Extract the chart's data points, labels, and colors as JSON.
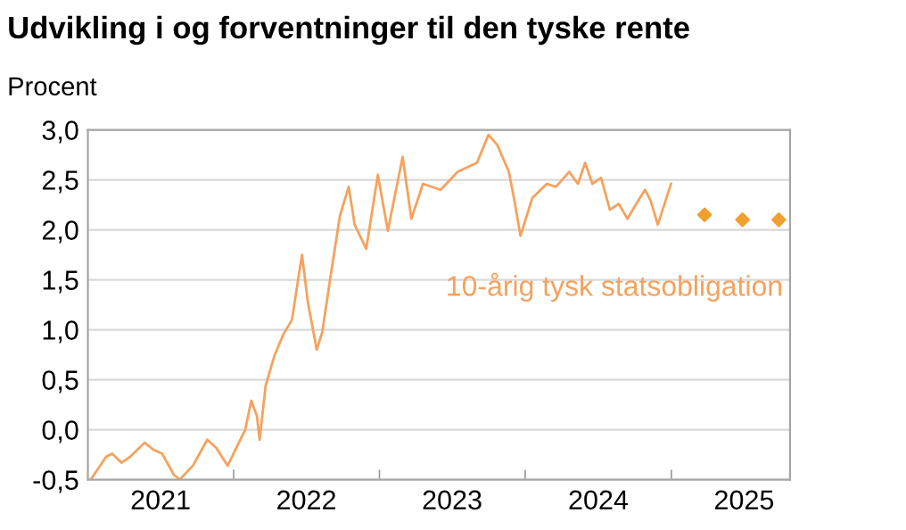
{
  "chart_data": {
    "type": "line",
    "title": "Udvikling i og forventninger til den tyske rente",
    "ylabel": "Procent",
    "xlim": [
      "2021-01-01",
      "2025-10-25"
    ],
    "xticks": [
      {
        "value": "2022-01-01",
        "label": null
      },
      {
        "value": "2023-01-01",
        "label": null
      },
      {
        "value": "2024-01-01",
        "label": null
      },
      {
        "value": "2025-01-01",
        "label": null
      },
      {
        "value": "2021-07-02",
        "label": "2021"
      },
      {
        "value": "2022-07-02",
        "label": "2022"
      },
      {
        "value": "2023-07-02",
        "label": "2023"
      },
      {
        "value": "2024-07-02",
        "label": "2024"
      },
      {
        "value": "2025-07-02",
        "label": "2025"
      }
    ],
    "ylim": [
      -0.5,
      3.0
    ],
    "yticks": [
      {
        "value": -0.5,
        "label": "-0,5"
      },
      {
        "value": 0.0,
        "label": "0,0"
      },
      {
        "value": 0.5,
        "label": "0,5"
      },
      {
        "value": 1.0,
        "label": "1,0"
      },
      {
        "value": 1.5,
        "label": "1,5"
      },
      {
        "value": 2.0,
        "label": "2,0"
      },
      {
        "value": 2.5,
        "label": "2,5"
      },
      {
        "value": 3.0,
        "label": "3,0"
      }
    ],
    "grid": "y",
    "legend": false,
    "series": [
      {
        "name": "10-årig tysk statsobligation",
        "color": "#f5a25d",
        "x": [
          "2021-01-08",
          "2021-02-16",
          "2021-03-03",
          "2021-03-26",
          "2021-04-17",
          "2021-05-23",
          "2021-06-14",
          "2021-07-06",
          "2021-08-04",
          "2021-08-19",
          "2021-09-21",
          "2021-10-27",
          "2021-11-18",
          "2021-12-17",
          "2022-01-08",
          "2022-01-30",
          "2022-02-14",
          "2022-02-28",
          "2022-03-07",
          "2022-03-22",
          "2022-04-13",
          "2022-05-05",
          "2022-05-27",
          "2022-06-21",
          "2022-07-06",
          "2022-07-28",
          "2022-08-11",
          "2022-09-02",
          "2022-09-24",
          "2022-10-16",
          "2022-10-31",
          "2022-11-29",
          "2022-12-28",
          "2023-01-22",
          "2023-02-28",
          "2023-03-22",
          "2023-04-20",
          "2023-06-03",
          "2023-07-16",
          "2023-09-02",
          "2023-10-01",
          "2023-10-23",
          "2023-11-21",
          "2023-12-05",
          "2023-12-20",
          "2024-01-19",
          "2024-02-24",
          "2024-03-18",
          "2024-04-20",
          "2024-05-12",
          "2024-05-30",
          "2024-06-17",
          "2024-07-09",
          "2024-07-31",
          "2024-08-22",
          "2024-09-13",
          "2024-10-05",
          "2024-10-27",
          "2024-11-10",
          "2024-11-28",
          "2024-12-31"
        ],
        "values": [
          -0.5,
          -0.27,
          -0.24,
          -0.33,
          -0.27,
          -0.13,
          -0.2,
          -0.24,
          -0.45,
          -0.5,
          -0.36,
          -0.1,
          -0.18,
          -0.36,
          -0.18,
          0.0,
          0.29,
          0.14,
          -0.1,
          0.44,
          0.74,
          0.95,
          1.1,
          1.75,
          1.27,
          0.8,
          0.98,
          1.57,
          2.14,
          2.43,
          2.05,
          1.81,
          2.55,
          1.99,
          2.73,
          2.11,
          2.46,
          2.4,
          2.58,
          2.67,
          2.95,
          2.85,
          2.58,
          2.29,
          1.94,
          2.32,
          2.46,
          2.43,
          2.58,
          2.46,
          2.67,
          2.46,
          2.52,
          2.2,
          2.26,
          2.11,
          2.26,
          2.4,
          2.29,
          2.05,
          2.46
        ]
      },
      {
        "type": "scatter",
        "marker": "diamond",
        "color": "#f0a030",
        "x": [
          "2025-03-25",
          "2025-06-28",
          "2025-09-27"
        ],
        "values": [
          2.15,
          2.1,
          2.1
        ]
      }
    ]
  }
}
